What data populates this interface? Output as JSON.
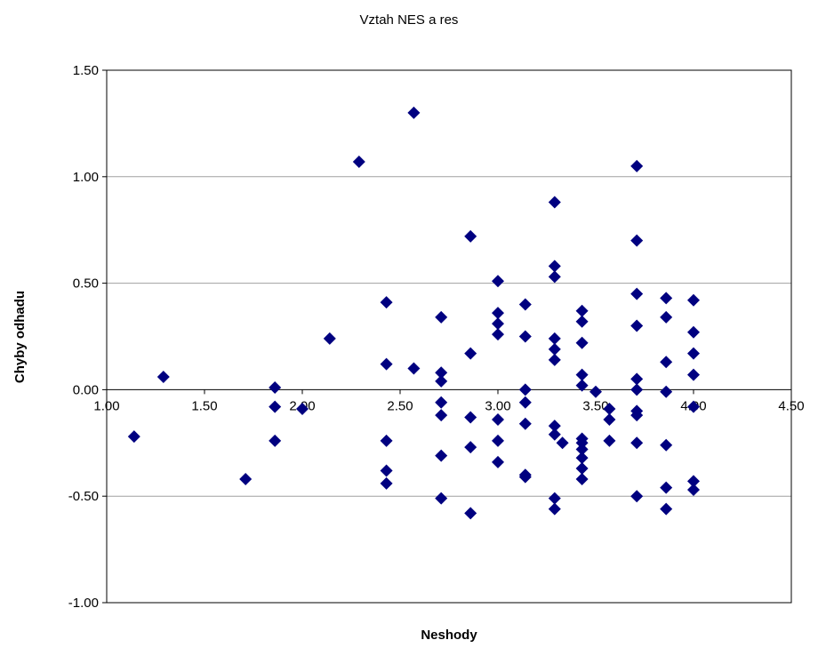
{
  "chart_data": {
    "type": "scatter",
    "title": "Vztah NES a res",
    "xlabel": "Neshody",
    "ylabel": "Chyby odhadu",
    "xlim": [
      1.0,
      4.5
    ],
    "ylim": [
      -1.0,
      1.5
    ],
    "xticks": [
      "1.00",
      "1.50",
      "2.00",
      "2.50",
      "3.00",
      "3.50",
      "4.00",
      "4.50"
    ],
    "yticks": [
      "1.50",
      "1.00",
      "0.50",
      "0.00",
      "-0.50",
      "-1.00"
    ],
    "grid": "horizontal",
    "marker": "diamond",
    "colors": {
      "marker": "#000080",
      "grid": "#a0a0a0",
      "axis": "#000000"
    },
    "series": [
      {
        "points": [
          [
            1.14,
            -0.22
          ],
          [
            1.29,
            0.06
          ],
          [
            1.71,
            -0.42
          ],
          [
            1.86,
            0.01
          ],
          [
            1.86,
            -0.08
          ],
          [
            1.86,
            -0.24
          ],
          [
            2.0,
            -0.09
          ],
          [
            2.14,
            0.24
          ],
          [
            2.29,
            1.07
          ],
          [
            2.43,
            0.41
          ],
          [
            2.43,
            0.12
          ],
          [
            2.43,
            -0.24
          ],
          [
            2.43,
            -0.38
          ],
          [
            2.43,
            -0.44
          ],
          [
            2.57,
            1.3
          ],
          [
            2.57,
            0.1
          ],
          [
            2.71,
            0.34
          ],
          [
            2.71,
            0.08
          ],
          [
            2.71,
            0.04
          ],
          [
            2.71,
            -0.06
          ],
          [
            2.71,
            -0.12
          ],
          [
            2.71,
            -0.31
          ],
          [
            2.71,
            -0.51
          ],
          [
            2.86,
            0.72
          ],
          [
            2.86,
            0.17
          ],
          [
            2.86,
            -0.13
          ],
          [
            2.86,
            -0.27
          ],
          [
            2.86,
            -0.58
          ],
          [
            3.0,
            0.51
          ],
          [
            3.0,
            0.36
          ],
          [
            3.0,
            0.31
          ],
          [
            3.0,
            0.26
          ],
          [
            3.0,
            -0.14
          ],
          [
            3.0,
            -0.24
          ],
          [
            3.0,
            -0.34
          ],
          [
            3.14,
            0.4
          ],
          [
            3.14,
            0.25
          ],
          [
            3.14,
            0.0
          ],
          [
            3.14,
            -0.06
          ],
          [
            3.14,
            -0.16
          ],
          [
            3.14,
            -0.4
          ],
          [
            3.14,
            -0.41
          ],
          [
            3.29,
            0.88
          ],
          [
            3.29,
            0.58
          ],
          [
            3.29,
            0.53
          ],
          [
            3.29,
            0.24
          ],
          [
            3.29,
            0.19
          ],
          [
            3.29,
            0.14
          ],
          [
            3.29,
            -0.17
          ],
          [
            3.29,
            -0.21
          ],
          [
            3.29,
            -0.51
          ],
          [
            3.29,
            -0.56
          ],
          [
            3.33,
            -0.25
          ],
          [
            3.43,
            0.37
          ],
          [
            3.43,
            0.32
          ],
          [
            3.43,
            0.22
          ],
          [
            3.43,
            0.07
          ],
          [
            3.43,
            0.02
          ],
          [
            3.43,
            -0.23
          ],
          [
            3.43,
            -0.25
          ],
          [
            3.43,
            -0.28
          ],
          [
            3.43,
            -0.32
          ],
          [
            3.43,
            -0.37
          ],
          [
            3.43,
            -0.42
          ],
          [
            3.5,
            -0.01
          ],
          [
            3.57,
            -0.09
          ],
          [
            3.57,
            -0.14
          ],
          [
            3.57,
            -0.24
          ],
          [
            3.71,
            1.05
          ],
          [
            3.71,
            0.7
          ],
          [
            3.71,
            0.45
          ],
          [
            3.71,
            0.3
          ],
          [
            3.71,
            0.05
          ],
          [
            3.71,
            0.0
          ],
          [
            3.71,
            -0.1
          ],
          [
            3.71,
            -0.12
          ],
          [
            3.71,
            -0.25
          ],
          [
            3.71,
            -0.5
          ],
          [
            3.86,
            0.43
          ],
          [
            3.86,
            0.34
          ],
          [
            3.86,
            0.13
          ],
          [
            3.86,
            -0.01
          ],
          [
            3.86,
            -0.26
          ],
          [
            3.86,
            -0.46
          ],
          [
            3.86,
            -0.56
          ],
          [
            4.0,
            0.42
          ],
          [
            4.0,
            0.27
          ],
          [
            4.0,
            0.17
          ],
          [
            4.0,
            0.07
          ],
          [
            4.0,
            -0.08
          ],
          [
            4.0,
            -0.43
          ],
          [
            4.0,
            -0.47
          ]
        ]
      }
    ]
  }
}
